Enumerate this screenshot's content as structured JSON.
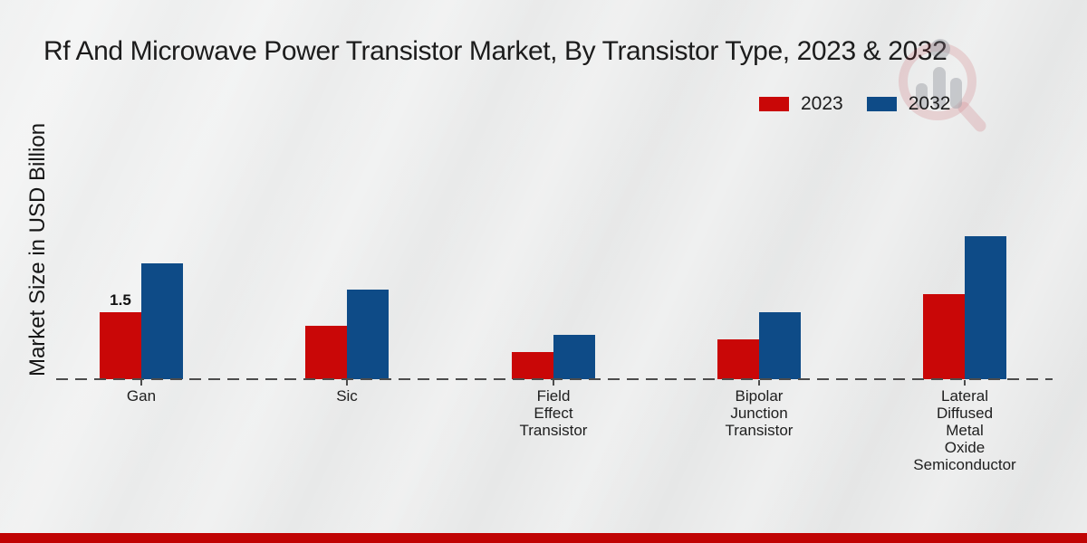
{
  "title": "Rf And Microwave Power Transistor Market, By Transistor Type, 2023 & 2032",
  "ylabel": "Market Size in USD Billion",
  "legend": {
    "items": [
      {
        "label": "2023",
        "color": "#c90707"
      },
      {
        "label": "2032",
        "color": "#0e4b87"
      }
    ]
  },
  "colors": {
    "series_2023": "#c90707",
    "series_2032": "#0e4b87",
    "footer_strip": "#c00404",
    "axis_line": "#4c4c4c",
    "background": "#e8e9e9"
  },
  "watermark": {
    "icon": "magnifier-bar-chart-logo"
  },
  "chart_data": {
    "type": "bar",
    "categories": [
      "Gan",
      "Sic",
      "Field Effect Transistor",
      "Bipolar Junction Transistor",
      "Lateral Diffused Metal Oxide Semiconductor"
    ],
    "category_label_lines": [
      [
        "Gan"
      ],
      [
        "Sic"
      ],
      [
        "Field",
        "Effect",
        "Transistor"
      ],
      [
        "Bipolar",
        "Junction",
        "Transistor"
      ],
      [
        "Lateral",
        "Diffused",
        "Metal",
        "Oxide",
        "Semiconductor"
      ]
    ],
    "series": [
      {
        "name": "2023",
        "color": "#c90707",
        "values": [
          1.5,
          1.2,
          0.6,
          0.9,
          1.9
        ]
      },
      {
        "name": "2032",
        "color": "#0e4b87",
        "values": [
          2.6,
          2.0,
          1.0,
          1.5,
          3.2
        ]
      }
    ],
    "annotations": [
      {
        "series": "2023",
        "category": "Gan",
        "text": "1.5"
      }
    ],
    "title": "Rf And Microwave Power Transistor Market, By Transistor Type, 2023 & 2032",
    "xlabel": "",
    "ylabel": "Market Size in USD Billion",
    "ylim": [
      0,
      3.5
    ],
    "grid": false,
    "legend_position": "top-right",
    "baseline_style": "dashed"
  }
}
